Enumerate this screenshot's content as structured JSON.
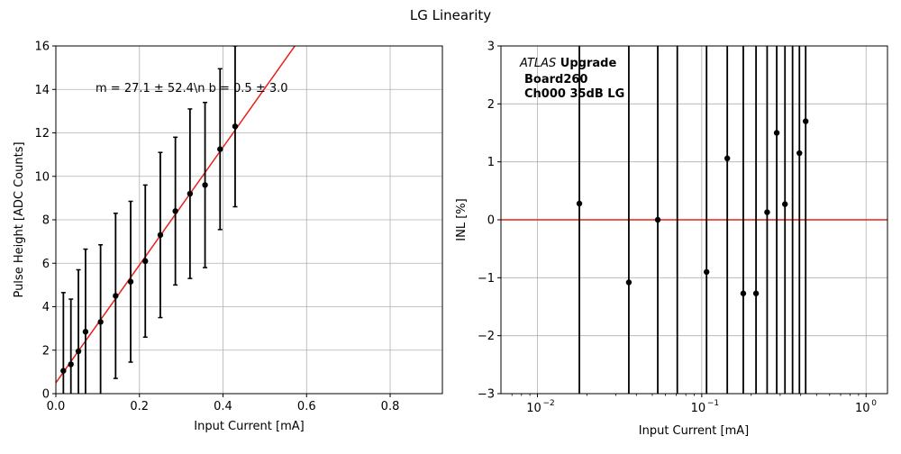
{
  "figure": {
    "title": "LG Linearity"
  },
  "chart_data": [
    {
      "type": "scatter",
      "panel": "left",
      "xlabel": "Input Current [mA]",
      "ylabel": "Pulse Height [ADC Counts]",
      "xlim": [
        0,
        0.925
      ],
      "ylim": [
        0,
        16
      ],
      "xscale": "linear",
      "xticks": [
        "0.0",
        "0.2",
        "0.4",
        "0.6",
        "0.8"
      ],
      "yticks": [
        "0",
        "2",
        "4",
        "6",
        "8",
        "10",
        "12",
        "14",
        "16"
      ],
      "grid": true,
      "annotation": "m = 27.1 ± 52.4\\n b = 0.5 ± 3.0",
      "fit": {
        "slope": 27.1,
        "intercept": 0.5,
        "color": "#e8201a"
      },
      "marker_color": "#000000",
      "points": [
        {
          "x": 0.018,
          "y": 1.05,
          "yerr": 3.6
        },
        {
          "x": 0.036,
          "y": 1.35,
          "yerr": 3.0
        },
        {
          "x": 0.054,
          "y": 1.95,
          "yerr": 3.75
        },
        {
          "x": 0.071,
          "y": 2.85,
          "yerr": 3.8
        },
        {
          "x": 0.107,
          "y": 3.3,
          "yerr": 3.55
        },
        {
          "x": 0.143,
          "y": 4.5,
          "yerr": 3.8
        },
        {
          "x": 0.179,
          "y": 5.15,
          "yerr": 3.7
        },
        {
          "x": 0.214,
          "y": 6.1,
          "yerr": 3.5
        },
        {
          "x": 0.25,
          "y": 7.3,
          "yerr": 3.8
        },
        {
          "x": 0.286,
          "y": 8.4,
          "yerr": 3.4
        },
        {
          "x": 0.321,
          "y": 9.2,
          "yerr": 3.9
        },
        {
          "x": 0.357,
          "y": 9.6,
          "yerr": 3.8
        },
        {
          "x": 0.393,
          "y": 11.25,
          "yerr": 3.7
        },
        {
          "x": 0.429,
          "y": 12.3,
          "yerr": 3.7
        }
      ]
    },
    {
      "type": "scatter",
      "panel": "right",
      "xlabel": "Input Current [mA]",
      "ylabel": "INL [%]",
      "xlim": [
        0.006,
        1.35
      ],
      "ylim": [
        -3,
        3
      ],
      "xscale": "log",
      "xticks": [
        {
          "value": 0.01,
          "base": "10",
          "exp": "−2"
        },
        {
          "value": 0.1,
          "base": "10",
          "exp": "−1"
        },
        {
          "value": 1,
          "base": "10",
          "exp": "0"
        }
      ],
      "yticks": [
        "−3",
        "−2",
        "−1",
        "0",
        "1",
        "2",
        "3"
      ],
      "grid": true,
      "reference_line": {
        "y": 0,
        "color": "#e8201a"
      },
      "marker_color": "#000000",
      "label_lines": [
        {
          "italic": "ATLAS",
          "bold": " Upgrade"
        },
        {
          "italic": "",
          "bold": "Board260"
        },
        {
          "italic": "",
          "bold": "Ch000 35dB LG"
        }
      ],
      "points": [
        {
          "x": 0.018,
          "y": 0.28
        },
        {
          "x": 0.036,
          "y": -1.08
        },
        {
          "x": 0.054,
          "y": 0.0
        },
        {
          "x": 0.071,
          "y": null
        },
        {
          "x": 0.107,
          "y": -0.9
        },
        {
          "x": 0.143,
          "y": 1.06
        },
        {
          "x": 0.179,
          "y": -1.27
        },
        {
          "x": 0.214,
          "y": -1.27
        },
        {
          "x": 0.25,
          "y": 0.13
        },
        {
          "x": 0.286,
          "y": 1.5
        },
        {
          "x": 0.321,
          "y": 0.27
        },
        {
          "x": 0.357,
          "y": null
        },
        {
          "x": 0.393,
          "y": 1.15
        },
        {
          "x": 0.429,
          "y": 1.7
        }
      ]
    }
  ]
}
